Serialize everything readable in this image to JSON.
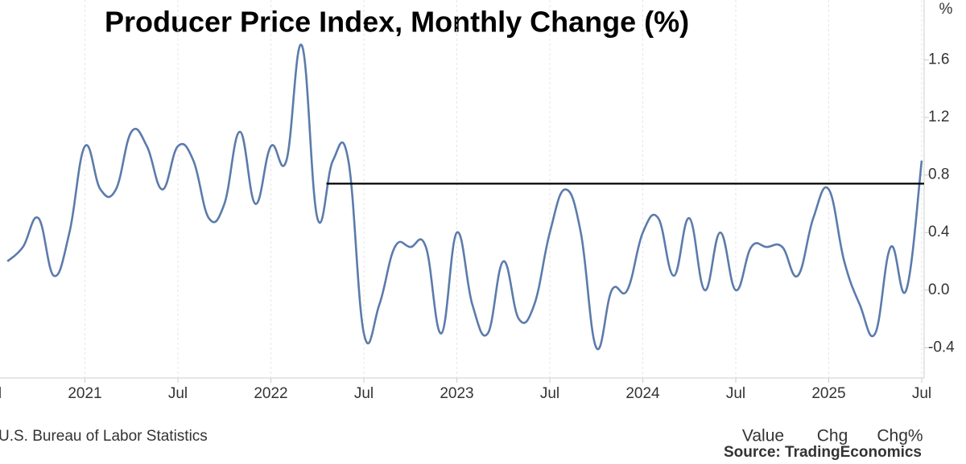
{
  "chart_data": {
    "type": "line",
    "title": "Producer Price Index, Monthly Change (%)",
    "y_unit": "%",
    "source": "U.S. Bureau of Labor Statistics",
    "tabs": [
      "Value",
      "Chg",
      "Chg%"
    ],
    "credit": "Source: TradingEconomics",
    "x": [
      "2020-08",
      "2020-09",
      "2020-10",
      "2020-11",
      "2020-12",
      "2021-01",
      "2021-02",
      "2021-03",
      "2021-04",
      "2021-05",
      "2021-06",
      "2021-07",
      "2021-08",
      "2021-09",
      "2021-10",
      "2021-11",
      "2021-12",
      "2022-01",
      "2022-02",
      "2022-03",
      "2022-04",
      "2022-05",
      "2022-06",
      "2022-07",
      "2022-08",
      "2022-09",
      "2022-10",
      "2022-11",
      "2022-12",
      "2023-01",
      "2023-02",
      "2023-03",
      "2023-04",
      "2023-05",
      "2023-06",
      "2023-07",
      "2023-08",
      "2023-09",
      "2023-10",
      "2023-11",
      "2023-12",
      "2024-01",
      "2024-02",
      "2024-03",
      "2024-04",
      "2024-05",
      "2024-06",
      "2024-07",
      "2024-08",
      "2024-09",
      "2024-10",
      "2024-11",
      "2024-12",
      "2025-01",
      "2025-02",
      "2025-03",
      "2025-04",
      "2025-05",
      "2025-06",
      "2025-07"
    ],
    "series": [
      {
        "name": "Value",
        "color": "#5b7bab",
        "values": [
          0.2,
          0.3,
          0.5,
          0.1,
          0.4,
          1.0,
          0.7,
          0.7,
          1.1,
          1.0,
          0.7,
          1.0,
          0.9,
          0.5,
          0.6,
          1.1,
          0.6,
          1.0,
          0.9,
          1.7,
          0.5,
          0.9,
          0.9,
          -0.3,
          -0.1,
          0.3,
          0.3,
          0.3,
          -0.3,
          0.4,
          -0.1,
          -0.3,
          0.2,
          -0.2,
          -0.1,
          0.4,
          0.7,
          0.4,
          -0.4,
          0.0,
          0.0,
          0.4,
          0.5,
          0.1,
          0.5,
          0.0,
          0.4,
          0.0,
          0.3,
          0.3,
          0.3,
          0.1,
          0.5,
          0.7,
          0.2,
          -0.1,
          -0.3,
          0.3,
          0.0,
          0.9
        ]
      }
    ],
    "reference_line": {
      "value": 0.74,
      "from": "2022-05"
    },
    "xlim": [
      "2020-07",
      "2025-07"
    ],
    "xticks": [
      {
        "value": "2020-07",
        "label": "Jul"
      },
      {
        "value": "2021-01",
        "label": "2021"
      },
      {
        "value": "2021-07",
        "label": "Jul"
      },
      {
        "value": "2022-01",
        "label": "2022"
      },
      {
        "value": "2022-07",
        "label": "Jul"
      },
      {
        "value": "2023-01",
        "label": "2023"
      },
      {
        "value": "2023-07",
        "label": "Jul"
      },
      {
        "value": "2024-01",
        "label": "2024"
      },
      {
        "value": "2024-07",
        "label": "Jul"
      },
      {
        "value": "2025-01",
        "label": "2025"
      },
      {
        "value": "2025-07",
        "label": "Jul"
      }
    ],
    "ylim": [
      -0.61,
      1.96
    ],
    "yticks": [
      {
        "value": -0.4,
        "label": "-0.4"
      },
      {
        "value": 0,
        "label": "0.0"
      },
      0.4,
      0.8,
      1.2,
      1.6
    ],
    "grid": true
  }
}
